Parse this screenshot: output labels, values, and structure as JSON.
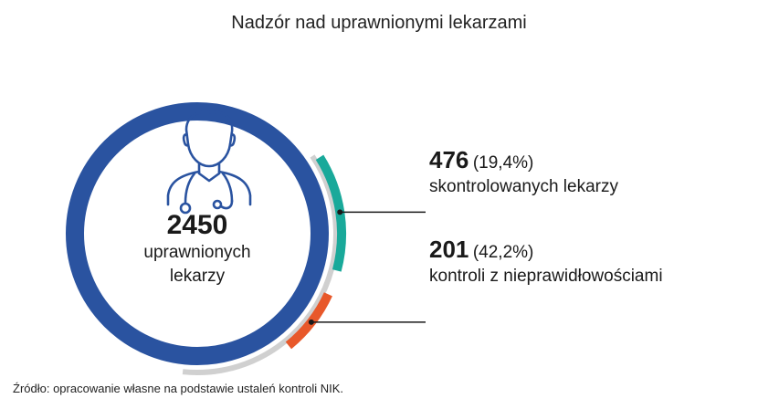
{
  "chart_data": {
    "type": "pie",
    "title": "Nadzór nad uprawnionymi lekarzami",
    "total": {
      "value": "2450",
      "label_line1": "uprawnionych",
      "label_line2": "lekarzy"
    },
    "segments": [
      {
        "value": "476",
        "percent": "(19,4%)",
        "fraction": 0.194,
        "label": "skontrolowanych lekarzy",
        "color": "#19a99a"
      },
      {
        "value": "201",
        "percent": "(42,2%)",
        "fraction": 0.422,
        "label": "kontroli z nieprawidłowościami",
        "color": "#e8582a"
      }
    ],
    "colors": {
      "main_ring": "#2a53a0",
      "outer_track": "#d0d0d0",
      "connector": "#1a1a1a"
    },
    "source": "Źródło: opracowanie własne na podstawie ustaleń kontroli NIK."
  }
}
